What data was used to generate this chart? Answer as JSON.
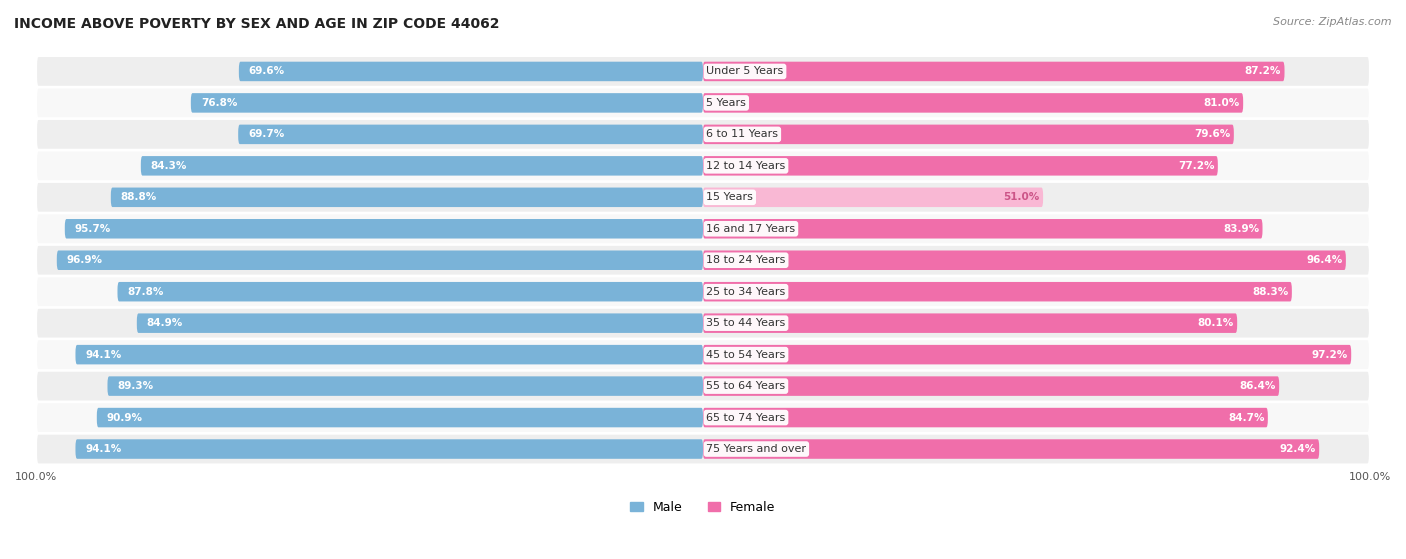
{
  "title": "INCOME ABOVE POVERTY BY SEX AND AGE IN ZIP CODE 44062",
  "source": "Source: ZipAtlas.com",
  "categories": [
    "Under 5 Years",
    "5 Years",
    "6 to 11 Years",
    "12 to 14 Years",
    "15 Years",
    "16 and 17 Years",
    "18 to 24 Years",
    "25 to 34 Years",
    "35 to 44 Years",
    "45 to 54 Years",
    "55 to 64 Years",
    "65 to 74 Years",
    "75 Years and over"
  ],
  "male_values": [
    69.6,
    76.8,
    69.7,
    84.3,
    88.8,
    95.7,
    96.9,
    87.8,
    84.9,
    94.1,
    89.3,
    90.9,
    94.1
  ],
  "female_values": [
    87.2,
    81.0,
    79.6,
    77.2,
    51.0,
    83.9,
    96.4,
    88.3,
    80.1,
    97.2,
    86.4,
    84.7,
    92.4
  ],
  "male_color": "#7ab3d8",
  "female_color": "#f06eaa",
  "female_color_light": "#f9b8d4",
  "bg_even_color": "#eeeeee",
  "bg_odd_color": "#f8f8f8",
  "title_fontsize": 10,
  "label_fontsize": 8,
  "tick_fontsize": 8,
  "source_fontsize": 8,
  "legend_fontsize": 9,
  "value_fontsize": 7.5
}
